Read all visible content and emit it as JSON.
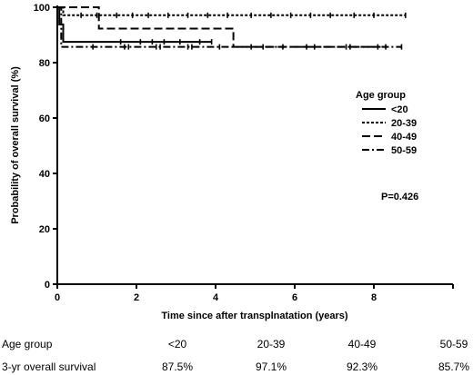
{
  "chart_data": {
    "type": "line",
    "subtype": "kaplan-meier",
    "xlabel": "Time since after transplnatation (years)",
    "ylabel": "Probability of overall survival (%)",
    "xlim": [
      0,
      10
    ],
    "ylim": [
      0,
      100
    ],
    "xticks": [
      0,
      2,
      4,
      6,
      8
    ],
    "yticks": [
      0,
      20,
      40,
      60,
      80,
      100
    ],
    "grid": false,
    "legend": {
      "title": "Age group",
      "placement": "right"
    },
    "annotation": "P=0.426",
    "series": [
      {
        "name": "<20",
        "dash": "solid",
        "x": [
          0,
          0.05,
          0.05,
          0.15,
          0.15,
          3.9
        ],
        "y": [
          100,
          100,
          93.8,
          93.8,
          87.5,
          87.5
        ],
        "censored_x": [
          1.6,
          2.1,
          2.4,
          2.7,
          3.1,
          3.6,
          3.9
        ]
      },
      {
        "name": "20-39",
        "dash": "dotted",
        "x": [
          0,
          0.15,
          0.15,
          8.8
        ],
        "y": [
          100,
          100,
          97.1,
          97.1
        ],
        "censored_x": [
          0.6,
          1.0,
          1.5,
          1.9,
          2.3,
          2.8,
          3.3,
          3.8,
          4.3,
          4.9,
          5.4,
          5.9,
          6.4,
          6.9,
          7.5,
          8.0,
          8.8
        ]
      },
      {
        "name": "40-49",
        "dash": "dashed",
        "x": [
          0,
          1.05,
          1.05,
          4.45,
          4.45,
          8.3
        ],
        "y": [
          100,
          100,
          92.3,
          92.3,
          85.7,
          85.7
        ],
        "censored_x": [
          1.8,
          2.6,
          3.4,
          5.2,
          6.3,
          7.4,
          8.3
        ]
      },
      {
        "name": "50-59",
        "dash": "dashdot",
        "x": [
          0,
          0.1,
          0.1,
          8.7
        ],
        "y": [
          100,
          100,
          85.7,
          85.7
        ],
        "censored_x": [
          0.9,
          1.7,
          2.5,
          3.3,
          4.1,
          4.9,
          5.7,
          6.5,
          7.3,
          8.1,
          8.7
        ]
      }
    ],
    "table": {
      "rows": [
        {
          "label": "Age group",
          "values": [
            "<20",
            "20-39",
            "40-49",
            "50-59"
          ]
        },
        {
          "label": "3-yr overall survival",
          "values": [
            "87.5%",
            "97.1%",
            "92.3%",
            "85.7%"
          ]
        }
      ]
    }
  }
}
